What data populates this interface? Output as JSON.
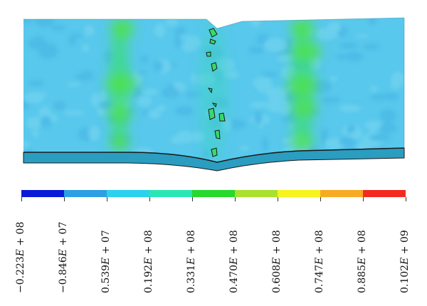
{
  "colormap": {
    "colors": [
      "#0a1bd8",
      "#2f9fe4",
      "#2ad2ee",
      "#2ae6b4",
      "#27d82e",
      "#a9e12e",
      "#f7f41f",
      "#f7aa22",
      "#f42a1f"
    ],
    "labels": [
      "−0.223<i>E</i> + 08",
      "−0.846<i>E</i> + 07",
      "0.539<i>E</i> + 07",
      "0.192<i>E</i> + 08",
      "0.331<i>E</i> + 08",
      "0.470<i>E</i> + 08",
      "0.608<i>E</i> + 08",
      "0.747<i>E</i> + 08",
      "0.885<i>E</i> + 08",
      "0.102<i>E</i> + 09"
    ]
  },
  "model": {
    "base_color": "#58c8ec",
    "bottom_layer_color": "#2a9dc0",
    "hot_band_color": "#38dc78",
    "edge_color": "#1a1a1a"
  }
}
